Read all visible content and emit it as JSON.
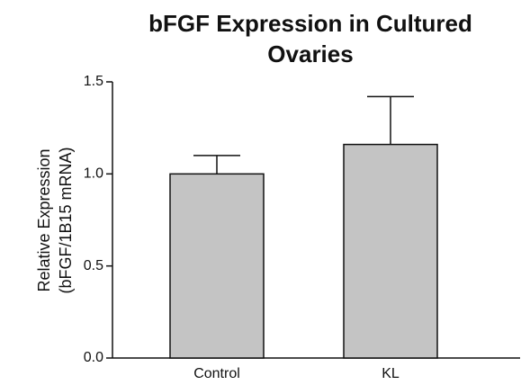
{
  "chart_data": {
    "type": "bar",
    "title": [
      "bFGF Expression in Cultured",
      "Ovaries"
    ],
    "y_label": [
      "Relative Expression",
      "(bFGF/1B15 mRNA)"
    ],
    "categories": [
      "Control",
      "KL"
    ],
    "series": [
      {
        "color": "#c4c4c4",
        "values": [
          1.0,
          1.16
        ],
        "errors": [
          0.1,
          0.26
        ]
      }
    ],
    "ylim": [
      0,
      1.5
    ],
    "yticks": [
      {
        "value": 0,
        "label": "0.0"
      },
      0.5,
      {
        "value": 1,
        "label": "1.0"
      },
      1.5
    ]
  }
}
